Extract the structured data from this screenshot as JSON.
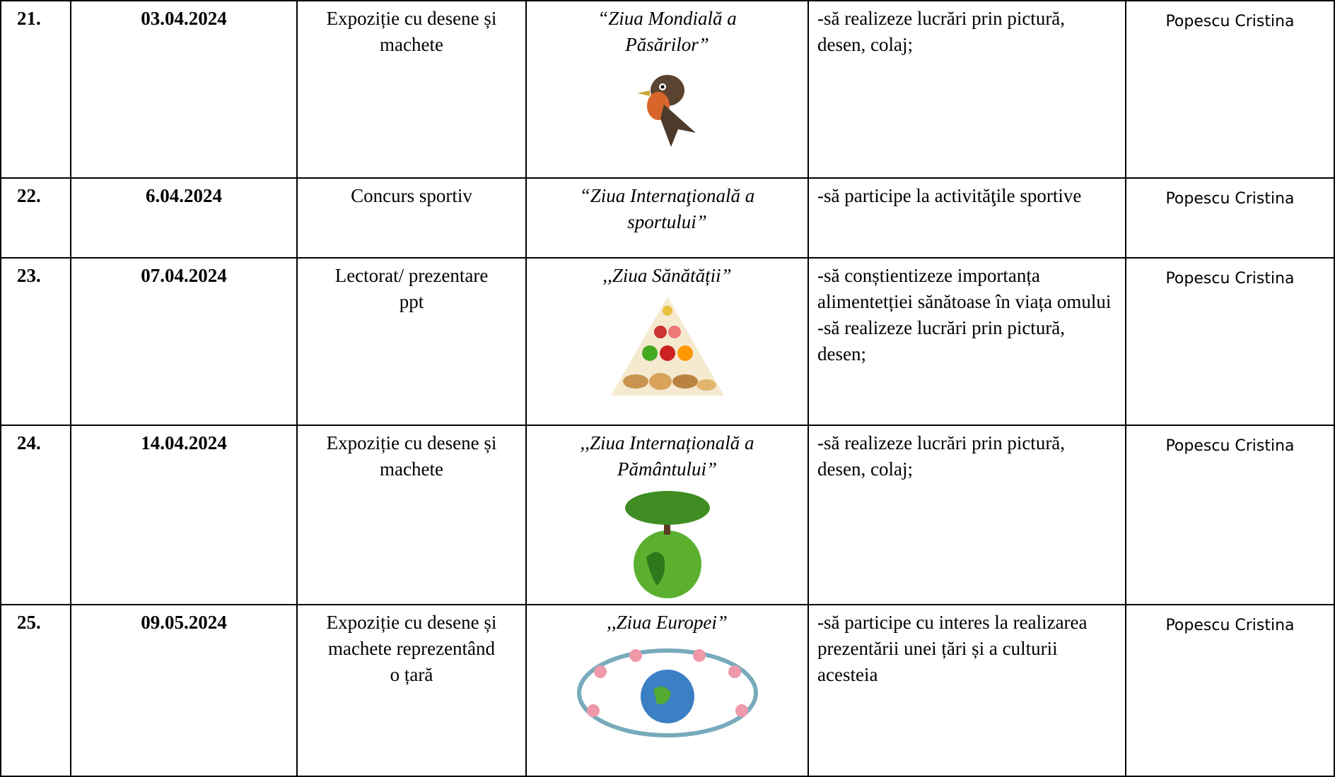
{
  "table": {
    "rows": [
      {
        "number": "21.",
        "date": "03.04.2024",
        "activity": "Expoziție cu desene și machete",
        "title": "“Ziua Mondială a Păsărilor”",
        "objectives": [
          "-să realizeze lucrări prin pictură, desen, colaj;"
        ],
        "teacher": "Popescu Cristina"
      },
      {
        "number": "22.",
        "date": "6.04.2024",
        "activity": "Concurs sportiv",
        "title": "“Ziua Internaţională a sportului”",
        "objectives": [
          "-să participe la activităţile sportive"
        ],
        "teacher": "Popescu Cristina"
      },
      {
        "number": "23.",
        "date": "07.04.2024",
        "activity": "Lectorat/ prezentare ppt",
        "title": ",,Ziua Sănătății”",
        "objectives": [
          "-să conștientizeze importanța alimentetției sănătoase în viața omului",
          "-să realizeze lucrări prin pictură, desen;"
        ],
        "teacher": "Popescu Cristina"
      },
      {
        "number": "24.",
        "date": "14.04.2024",
        "activity": "Expoziție cu desene și machete",
        "title": ",,Ziua Internațională a Pământului”",
        "objectives": [
          "-să realizeze lucrări prin pictură, desen, colaj;"
        ],
        "teacher": "Popescu Cristina"
      },
      {
        "number": "25.",
        "date": "09.05.2024",
        "activity": "Expoziție cu desene și machete reprezentând o țară",
        "title": ",,Ziua Europei”",
        "objectives": [
          "-să participe cu interes la realizarea prezentării unei țări și a culturii acesteia"
        ],
        "teacher": "Popescu Cristina"
      }
    ]
  }
}
